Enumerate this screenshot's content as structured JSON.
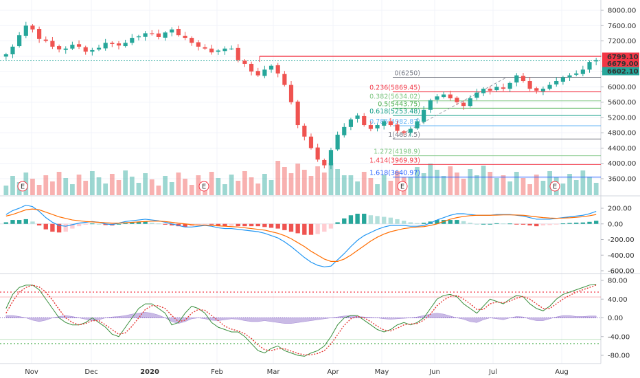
{
  "chart_data": {
    "type": "candlestick",
    "price_axis": {
      "ticks": [
        "8000.00",
        "7600.00",
        "7200.00",
        "6800.00",
        "6400.00",
        "6000.00",
        "5600.00",
        "5200.00",
        "4800.00",
        "4400.00",
        "4000.00",
        "3600.00"
      ],
      "ylim": [
        3200,
        8200
      ]
    },
    "time_axis": {
      "labels": [
        "Nov",
        "Dec",
        "2020",
        "Feb",
        "Mar",
        "Apr",
        "May",
        "Jun",
        "Jul",
        "Aug"
      ]
    },
    "price_labels": [
      {
        "value": "6799.10",
        "color": "#f23645"
      },
      {
        "value": "6679.00",
        "color": "#f23645"
      },
      {
        "value": "6602.10",
        "color": "#26a69a"
      }
    ],
    "close_series": [
      6850,
      7050,
      7350,
      7600,
      7500,
      7250,
      7200,
      7050,
      6980,
      7000,
      7100,
      7050,
      6920,
      6960,
      7020,
      7150,
      7120,
      7080,
      7150,
      7280,
      7320,
      7400,
      7380,
      7300,
      7420,
      7500,
      7350,
      7280,
      7150,
      7050,
      7000,
      6900,
      6950,
      7000,
      7000,
      6700,
      6600,
      6400,
      6300,
      6450,
      6550,
      6350,
      6050,
      5600,
      5000,
      4700,
      4400,
      4100,
      3950,
      4350,
      4750,
      4950,
      5150,
      5250,
      5000,
      4900,
      5000,
      5100,
      5000,
      4850,
      4800,
      4900,
      5100,
      5400,
      5650,
      5750,
      5800,
      5700,
      5600,
      5500,
      5700,
      5850,
      5950,
      5900,
      6000,
      5950,
      6100,
      6300,
      6150,
      5950,
      5900,
      5950,
      6050,
      6150,
      6250,
      6300,
      6350,
      6450,
      6650,
      6700
    ],
    "fibonacci": [
      {
        "label": "0(6250)",
        "price": 6250,
        "color": "#787b86"
      },
      {
        "label": "0.236(5869.45)",
        "price": 5869.45,
        "color": "#f23645"
      },
      {
        "label": "0.382(5634.02)",
        "price": 5634.02,
        "color": "#81c784"
      },
      {
        "label": "0.5(5443.75)",
        "price": 5443.75,
        "color": "#4caf50"
      },
      {
        "label": "0.618(5253.48)",
        "price": 5253.48,
        "color": "#089981"
      },
      {
        "label": "0.786(4982.87)",
        "price": 4982.87,
        "color": "#64b5f6"
      },
      {
        "label": "1(4637.5)",
        "price": 4637.5,
        "color": "#787b86"
      },
      {
        "label": "1.272(4198.9)",
        "price": 4198.9,
        "color": "#81c784"
      },
      {
        "label": "1.414(3969.93)",
        "price": 3969.93,
        "color": "#f23645"
      },
      {
        "label": "1.618(3640.97)",
        "price": 3640.97,
        "color": "#2962ff"
      }
    ],
    "horizontal_lines": [
      {
        "price": 6799.1,
        "color": "#f23645",
        "style": "solid"
      },
      {
        "price": 6679.0,
        "color": "#26a69a",
        "style": "dotted"
      }
    ],
    "earnings_markers": [
      "E",
      "E",
      "E",
      "E"
    ],
    "macd_panel": {
      "ticks": [
        "200.00",
        "0.00",
        "-200.00",
        "-400.00",
        "-600.00"
      ],
      "ylim": [
        -700,
        250
      ],
      "macd_line_color": "#2196f3",
      "signal_line_color": "#ff6d00",
      "macd": [
        120,
        170,
        200,
        240,
        220,
        160,
        80,
        20,
        -20,
        -30,
        -10,
        10,
        20,
        30,
        20,
        0,
        -10,
        10,
        30,
        40,
        50,
        60,
        50,
        40,
        20,
        0,
        -20,
        -40,
        -40,
        -30,
        -20,
        -30,
        -50,
        -60,
        -60,
        -70,
        -80,
        -90,
        -100,
        -120,
        -150,
        -180,
        -230,
        -290,
        -360,
        -430,
        -490,
        -530,
        -550,
        -540,
        -460,
        -380,
        -290,
        -210,
        -150,
        -110,
        -70,
        -40,
        -20,
        -20,
        -20,
        -30,
        -30,
        -20,
        10,
        50,
        80,
        110,
        130,
        130,
        120,
        110,
        110,
        110,
        120,
        120,
        120,
        110,
        100,
        80,
        60,
        60,
        60,
        70,
        80,
        90,
        100,
        110,
        130,
        160
      ],
      "signal": [
        100,
        120,
        150,
        180,
        190,
        180,
        150,
        120,
        90,
        70,
        50,
        40,
        30,
        25,
        20,
        15,
        10,
        10,
        15,
        20,
        25,
        30,
        35,
        35,
        30,
        20,
        10,
        0,
        -10,
        -15,
        -15,
        -20,
        -25,
        -30,
        -35,
        -40,
        -50,
        -60,
        -70,
        -80,
        -100,
        -120,
        -150,
        -190,
        -240,
        -290,
        -350,
        -400,
        -450,
        -480,
        -480,
        -450,
        -400,
        -340,
        -280,
        -220,
        -170,
        -130,
        -100,
        -80,
        -60,
        -50,
        -40,
        -35,
        -20,
        0,
        30,
        60,
        80,
        95,
        105,
        110,
        110,
        110,
        112,
        115,
        115,
        113,
        110,
        100,
        90,
        80,
        75,
        72,
        74,
        78,
        84,
        92,
        104,
        120
      ],
      "histogram": [
        20,
        50,
        50,
        60,
        30,
        -20,
        -70,
        -100,
        -110,
        -100,
        -60,
        -30,
        -10,
        5,
        0,
        -15,
        -20,
        0,
        15,
        20,
        25,
        30,
        15,
        5,
        -10,
        -20,
        -30,
        -40,
        -30,
        -15,
        -5,
        -10,
        -25,
        -30,
        -25,
        -30,
        -30,
        -30,
        -30,
        -40,
        -50,
        -60,
        -80,
        -100,
        -120,
        -140,
        -140,
        -130,
        -100,
        -60,
        20,
        70,
        110,
        130,
        130,
        110,
        100,
        90,
        80,
        60,
        40,
        20,
        10,
        15,
        30,
        50,
        50,
        50,
        50,
        35,
        15,
        0,
        0,
        0,
        8,
        5,
        5,
        -3,
        -10,
        -20,
        -30,
        -20,
        -15,
        -2,
        6,
        12,
        16,
        18,
        26,
        40
      ]
    },
    "stoch_panel": {
      "ticks": [
        "80.00",
        "40.00",
        "0.00",
        "-40.00",
        "-80.00"
      ],
      "ylim": [
        -100,
        90
      ],
      "upper_band": 55,
      "lower_band": -55,
      "k": [
        20,
        50,
        65,
        70,
        70,
        60,
        40,
        20,
        0,
        -10,
        -15,
        -15,
        -10,
        0,
        -10,
        -20,
        -35,
        -40,
        -20,
        0,
        20,
        30,
        30,
        20,
        10,
        -15,
        -10,
        10,
        25,
        20,
        10,
        -10,
        -20,
        -25,
        -30,
        -30,
        -40,
        -55,
        -70,
        -75,
        -65,
        -60,
        -70,
        -75,
        -80,
        -82,
        -75,
        -70,
        -60,
        -40,
        -15,
        0,
        5,
        5,
        -5,
        -15,
        -25,
        -30,
        -25,
        -15,
        -10,
        -15,
        -10,
        0,
        20,
        40,
        48,
        50,
        45,
        30,
        20,
        10,
        25,
        40,
        35,
        30,
        40,
        48,
        45,
        30,
        20,
        15,
        25,
        40,
        50,
        55,
        60,
        65,
        70,
        72
      ],
      "d": [
        10,
        35,
        55,
        65,
        70,
        66,
        55,
        38,
        18,
        0,
        -10,
        -15,
        -12,
        -6,
        -6,
        -15,
        -25,
        -35,
        -32,
        -18,
        0,
        18,
        26,
        26,
        20,
        5,
        -8,
        -5,
        10,
        18,
        16,
        5,
        -6,
        -18,
        -24,
        -28,
        -34,
        -44,
        -58,
        -68,
        -70,
        -66,
        -66,
        -71,
        -76,
        -79,
        -79,
        -76,
        -70,
        -56,
        -36,
        -16,
        -2,
        3,
        0,
        -8,
        -18,
        -26,
        -28,
        -22,
        -15,
        -13,
        -12,
        -5,
        8,
        26,
        38,
        46,
        48,
        40,
        30,
        18,
        18,
        30,
        34,
        32,
        36,
        42,
        46,
        40,
        30,
        20,
        20,
        30,
        40,
        48,
        55,
        60,
        65,
        70
      ],
      "oscillator": [
        5,
        5,
        3,
        0,
        -5,
        -8,
        -5,
        0,
        3,
        5,
        3,
        0,
        -3,
        -6,
        -4,
        0,
        2,
        3,
        5,
        8,
        10,
        12,
        10,
        6,
        0,
        -8,
        -12,
        -8,
        -2,
        0,
        -2,
        -5,
        -6,
        -4,
        -2,
        -3,
        -6,
        -8,
        -8,
        -6,
        -8,
        -10,
        -12,
        -12,
        -10,
        -8,
        -6,
        -4,
        -2,
        0,
        2,
        4,
        5,
        3,
        2,
        1,
        0,
        -2,
        -3,
        -2,
        -1,
        0,
        2,
        5,
        8,
        10,
        8,
        4,
        0,
        -3,
        -8,
        -10,
        -4,
        0,
        -2,
        -4,
        0,
        3,
        2,
        -3,
        -6,
        -6,
        -2,
        2,
        5,
        5,
        3,
        3,
        4,
        4
      ]
    }
  }
}
